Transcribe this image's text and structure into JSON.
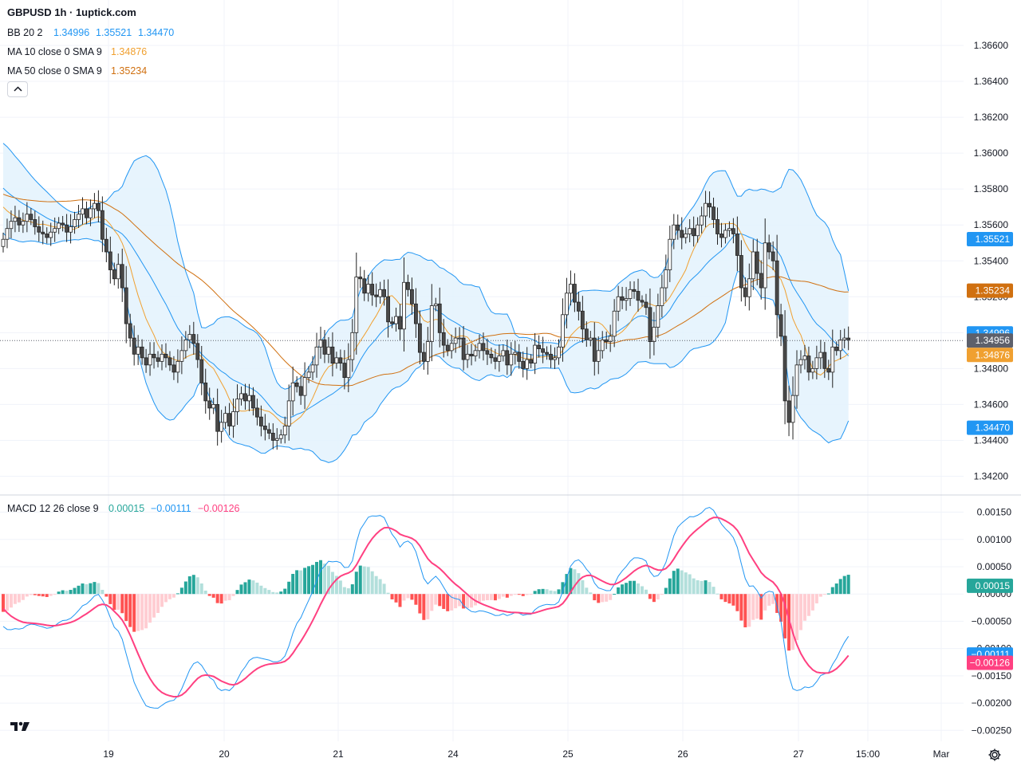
{
  "header": {
    "title": "GBPUSD 1h · 1uptick.com",
    "legend": {
      "bb": {
        "label": "BB 20 2",
        "values": [
          "1.34996",
          "1.35521",
          "1.34470"
        ]
      },
      "ma10": {
        "label": "MA 10 close 0 SMA 9",
        "value": "1.34876"
      },
      "ma50": {
        "label": "MA 50 close 0 SMA 9",
        "value": "1.35234"
      }
    }
  },
  "macd_legend": {
    "label": "MACD 12 26 close 9",
    "values": [
      "0.00015",
      "−0.00111",
      "−0.00126"
    ]
  },
  "colors": {
    "up_candle": "#ffffff",
    "down_candle": "#4a4a4a",
    "wick": "#222222",
    "bb_line": "#2196f3",
    "bb_fill": "#e3f2fd",
    "ma10": "#f0a030",
    "ma50": "#d07010",
    "macd_line": "#2196f3",
    "signal_line": "#ff4081",
    "hist_pos_strong": "#26a69a",
    "hist_pos_weak": "#b2dfdb",
    "hist_neg_strong": "#ff5252",
    "hist_neg_weak": "#ffcdd2",
    "last_price": "#5d606b"
  },
  "icons": {
    "collapse": "chevron-up-icon",
    "logo": "tradingview-logo",
    "settings": "gear-icon"
  },
  "chart_data": [
    {
      "type": "candlestick",
      "symbol": "GBPUSD",
      "interval": "1h",
      "y_ticks": [
        "1.36600",
        "1.36400",
        "1.36200",
        "1.36000",
        "1.35800",
        "1.35600",
        "1.35400",
        "1.35200",
        "1.35000",
        "1.34800",
        "1.34600",
        "1.34400",
        "1.34200"
      ],
      "ylim": [
        1.341,
        1.3672
      ],
      "x_ticks": [
        "19",
        "20",
        "21",
        "24",
        "25",
        "26",
        "27",
        "15:00",
        "Mar"
      ],
      "last_price": "1.34956",
      "badges": {
        "bb_upper": "1.35521",
        "ma50": "1.35234",
        "bb_basis": "1.34996",
        "last": "1.34956",
        "ma10": "1.34876",
        "bb_lower": "1.34470"
      },
      "close_series": [
        1.3552,
        1.3558,
        1.3562,
        1.3564,
        1.356,
        1.3562,
        1.3566,
        1.3563,
        1.3559,
        1.3556,
        1.3555,
        1.3553,
        1.3556,
        1.3558,
        1.3561,
        1.356,
        1.3556,
        1.3559,
        1.3563,
        1.3566,
        1.3569,
        1.3564,
        1.3569,
        1.3572,
        1.3568,
        1.3552,
        1.3545,
        1.3535,
        1.353,
        1.3538,
        1.3525,
        1.3505,
        1.3497,
        1.3488,
        1.3492,
        1.3486,
        1.3482,
        1.3488,
        1.3486,
        1.3484,
        1.3488,
        1.3486,
        1.3482,
        1.3478,
        1.3484,
        1.349,
        1.3496,
        1.3499,
        1.3494,
        1.3485,
        1.3472,
        1.3462,
        1.3458,
        1.346,
        1.3445,
        1.345,
        1.3455,
        1.3448,
        1.3456,
        1.3463,
        1.3466,
        1.3462,
        1.3465,
        1.3458,
        1.3453,
        1.3448,
        1.3446,
        1.3444,
        1.344,
        1.3441,
        1.3443,
        1.3448,
        1.3462,
        1.3472,
        1.347,
        1.3465,
        1.3475,
        1.3478,
        1.3482,
        1.3492,
        1.3496,
        1.3488,
        1.3492,
        1.3483,
        1.3486,
        1.3483,
        1.3475,
        1.3485,
        1.35,
        1.3531,
        1.353,
        1.3522,
        1.3527,
        1.3521,
        1.352,
        1.3524,
        1.352,
        1.3506,
        1.3505,
        1.3509,
        1.3502,
        1.3528,
        1.3524,
        1.3516,
        1.3505,
        1.3489,
        1.3484,
        1.3495,
        1.3515,
        1.3516,
        1.35,
        1.3493,
        1.349,
        1.3494,
        1.3497,
        1.3497,
        1.3485,
        1.3488,
        1.3487,
        1.349,
        1.3494,
        1.349,
        1.3488,
        1.3486,
        1.3484,
        1.3487,
        1.349,
        1.3482,
        1.3488,
        1.3489,
        1.3484,
        1.348,
        1.3485,
        1.3483,
        1.3493,
        1.3491,
        1.3489,
        1.3488,
        1.3485,
        1.3486,
        1.3492,
        1.351,
        1.3522,
        1.3527,
        1.3517,
        1.3512,
        1.3502,
        1.3496,
        1.3497,
        1.3484,
        1.349,
        1.3496,
        1.3495,
        1.3498,
        1.3512,
        1.352,
        1.3518,
        1.3519,
        1.3524,
        1.3523,
        1.3518,
        1.3517,
        1.3514,
        1.3495,
        1.3503,
        1.3515,
        1.3525,
        1.3535,
        1.3552,
        1.356,
        1.3557,
        1.3553,
        1.3555,
        1.3558,
        1.3554,
        1.356,
        1.3565,
        1.3572,
        1.357,
        1.3563,
        1.3555,
        1.3553,
        1.3557,
        1.3558,
        1.3555,
        1.3543,
        1.3525,
        1.352,
        1.353,
        1.3545,
        1.3533,
        1.3525,
        1.355,
        1.3545,
        1.354,
        1.351,
        1.3498,
        1.3462,
        1.345,
        1.3465,
        1.3482,
        1.3485,
        1.3487,
        1.3478,
        1.348,
        1.3486,
        1.3489,
        1.348,
        1.3478,
        1.3492,
        1.349,
        1.3496,
        1.3497,
        1.3496
      ]
    },
    {
      "type": "histogram",
      "name": "MACD",
      "y_ticks": [
        "0.00150",
        "0.00100",
        "0.00050",
        "0.00000",
        "−0.00050",
        "−0.00100",
        "−0.00150",
        "−0.00200",
        "−0.00250"
      ],
      "ylim": [
        -0.0027,
        0.0018
      ],
      "badges": {
        "hist": "0.00015",
        "macd": "−0.00111",
        "signal": "−0.00126"
      }
    }
  ]
}
